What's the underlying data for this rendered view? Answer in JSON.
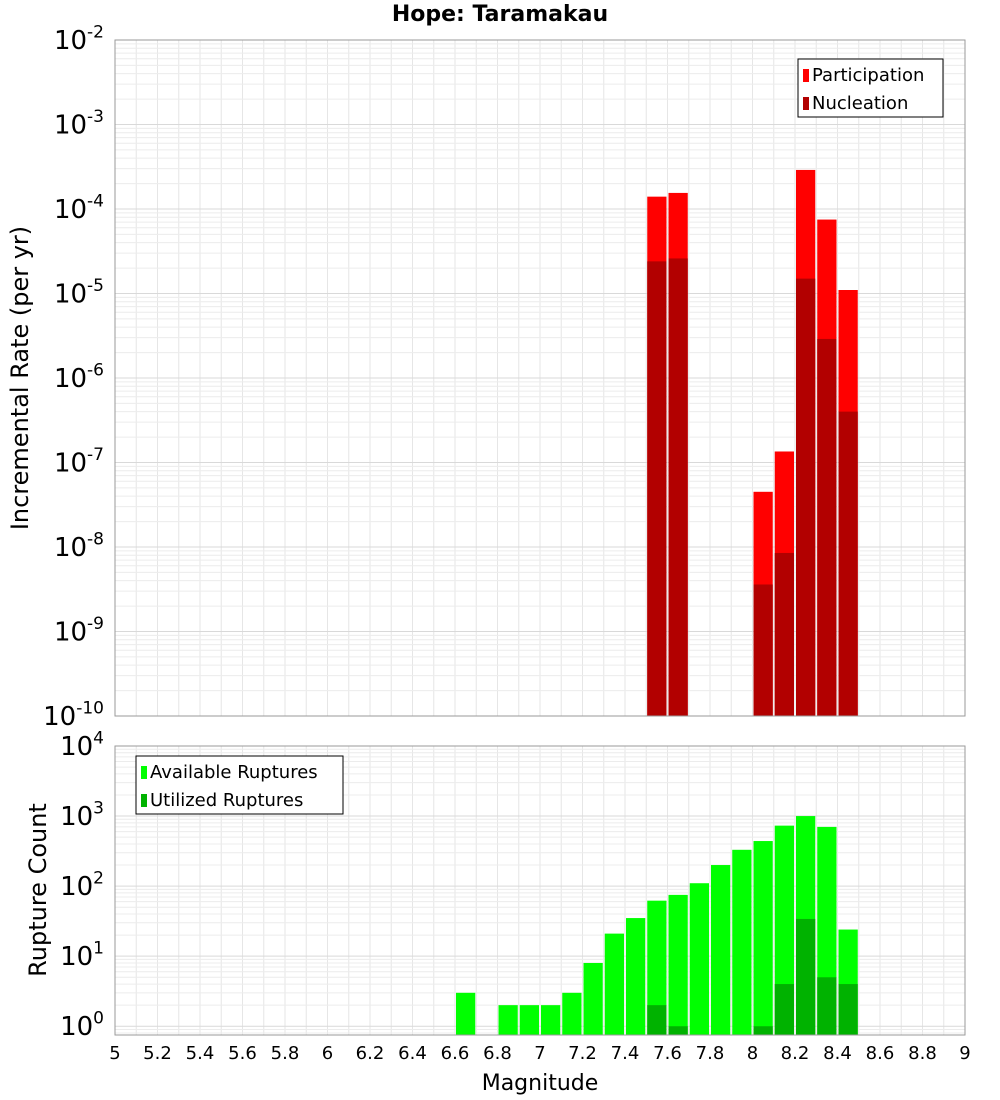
{
  "chart_data": [
    {
      "type": "bar",
      "title": "Hope: Taramakau",
      "ylabel": "Incremental Rate (per yr)",
      "xlabel": "",
      "yscale": "log",
      "ylim": [
        1e-10,
        0.01
      ],
      "xlim": [
        5,
        9
      ],
      "bin_width": 0.1,
      "grid": true,
      "legend_position": "top-right",
      "y_tick_labels": [
        "10^-10",
        "10^-9",
        "10^-8",
        "10^-7",
        "10^-6",
        "10^-5",
        "10^-4",
        "10^-3",
        "10^-2"
      ],
      "series": [
        {
          "name": "Participation",
          "color": "#ff0000",
          "x": [
            7.55,
            7.65,
            8.05,
            8.15,
            8.25,
            8.35,
            8.45
          ],
          "values": [
            0.00014,
            0.000155,
            4.5e-08,
            1.35e-07,
            0.00029,
            7.5e-05,
            1.1e-05
          ]
        },
        {
          "name": "Nucleation",
          "color": "#b20000",
          "x": [
            7.55,
            7.65,
            8.05,
            8.15,
            8.25,
            8.35,
            8.45
          ],
          "values": [
            2.4e-05,
            2.6e-05,
            3.6e-09,
            8.5e-09,
            1.5e-05,
            2.9e-06,
            4e-07
          ]
        }
      ]
    },
    {
      "type": "bar",
      "title": "",
      "ylabel": "Rupture Count",
      "xlabel": "Magnitude",
      "yscale": "log",
      "ylim": [
        0.75,
        10000
      ],
      "xlim": [
        5,
        9
      ],
      "bin_width": 0.1,
      "grid": true,
      "legend_position": "top-left",
      "x_tick_labels": [
        "5",
        "5.2",
        "5.4",
        "5.6",
        "5.8",
        "6",
        "6.2",
        "6.4",
        "6.6",
        "6.8",
        "7",
        "7.2",
        "7.4",
        "7.6",
        "7.8",
        "8",
        "8.2",
        "8.4",
        "8.6",
        "8.8",
        "9"
      ],
      "y_tick_labels": [
        "10^0",
        "10^1",
        "10^2",
        "10^3",
        "10^4"
      ],
      "series": [
        {
          "name": "Available Ruptures",
          "color": "#00ff00",
          "x": [
            6.65,
            6.85,
            6.95,
            7.05,
            7.15,
            7.25,
            7.35,
            7.45,
            7.55,
            7.65,
            7.75,
            7.85,
            7.95,
            8.05,
            8.15,
            8.25,
            8.35,
            8.45
          ],
          "values": [
            3,
            2,
            2,
            2,
            3,
            8,
            21,
            35,
            62,
            75,
            110,
            200,
            330,
            440,
            730,
            1000,
            700,
            24
          ]
        },
        {
          "name": "Utilized Ruptures",
          "color": "#00b200",
          "x": [
            7.55,
            7.65,
            8.05,
            8.15,
            8.25,
            8.35,
            8.45
          ],
          "values": [
            2,
            1,
            1,
            4,
            34,
            5,
            4
          ]
        }
      ]
    }
  ]
}
